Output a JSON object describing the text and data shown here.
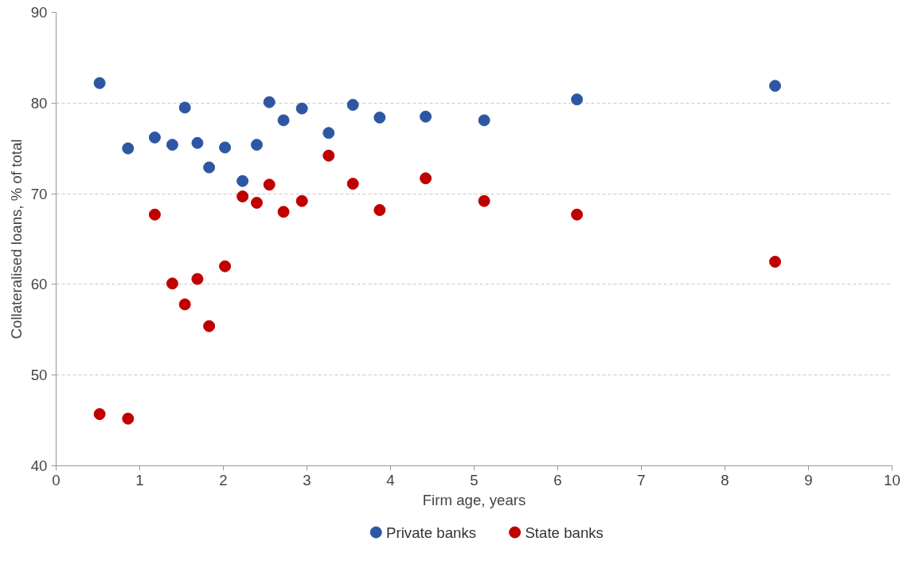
{
  "chart_data": {
    "type": "scatter",
    "xlabel": "Firm age, years",
    "ylabel": "Collateralised loans, % of total",
    "xlim": [
      0,
      10
    ],
    "xticks": [
      0,
      1,
      2,
      3,
      4,
      5,
      6,
      7,
      8,
      9,
      10
    ],
    "ylim": [
      40,
      90
    ],
    "yticks": [
      40,
      50,
      60,
      70,
      80,
      90
    ],
    "grid": "y",
    "legend": "bottom",
    "marker": "circle",
    "series": [
      {
        "name": "Private banks",
        "color": "#2e57a3",
        "x": [
          0.52,
          0.86,
          1.18,
          1.39,
          1.54,
          1.69,
          1.83,
          2.02,
          2.23,
          2.4,
          2.55,
          2.72,
          2.94,
          3.26,
          3.55,
          3.87,
          4.42,
          5.12,
          6.23,
          8.6
        ],
        "values": [
          82.2,
          75.0,
          76.2,
          75.4,
          79.5,
          75.6,
          72.9,
          75.1,
          71.4,
          75.4,
          80.1,
          78.1,
          79.4,
          76.7,
          79.8,
          78.4,
          78.5,
          78.1,
          80.4,
          81.9
        ]
      },
      {
        "name": "State banks",
        "color": "#c00000",
        "x": [
          0.52,
          0.86,
          1.18,
          1.39,
          1.54,
          1.69,
          1.83,
          2.02,
          2.23,
          2.4,
          2.55,
          2.72,
          2.94,
          3.26,
          3.55,
          3.87,
          4.42,
          5.12,
          6.23,
          8.6
        ],
        "values": [
          45.7,
          45.2,
          67.7,
          60.1,
          57.8,
          60.6,
          55.4,
          62.0,
          69.7,
          69.0,
          71.0,
          68.0,
          69.2,
          74.2,
          71.1,
          68.2,
          71.7,
          69.2,
          67.7,
          62.5
        ]
      }
    ]
  }
}
